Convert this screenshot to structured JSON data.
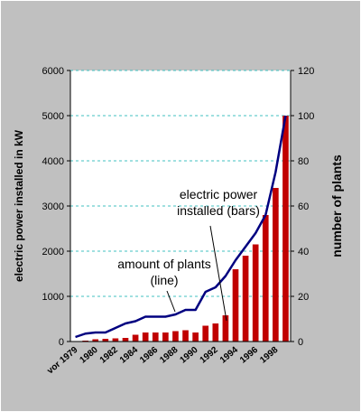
{
  "chart_data": {
    "type": "bar-line",
    "y_label": "electric power installed in kW",
    "y2_label": "number of plants",
    "categories": [
      "vor 1979",
      null,
      "1980",
      null,
      "1982",
      null,
      "1984",
      null,
      "1986",
      null,
      "1988",
      null,
      "1990",
      null,
      "1992",
      null,
      "1994",
      null,
      "1996",
      null,
      "1998",
      null
    ],
    "series": [
      {
        "type": "bar",
        "color": "#c00000",
        "values": [
          0,
          20,
          50,
          60,
          70,
          80,
          150,
          200,
          200,
          200,
          230,
          250,
          200,
          350,
          400,
          580,
          1600,
          1900,
          2150,
          2800,
          3400,
          5000
        ]
      },
      {
        "type": "line",
        "axis": "y2",
        "color": "#000080",
        "values": [
          2,
          3.5,
          4,
          4,
          6,
          8,
          9,
          11,
          11,
          11,
          12,
          14,
          14,
          22,
          24,
          29,
          36,
          42,
          48,
          56,
          75,
          100
        ]
      }
    ],
    "ylim": [
      0,
      6000
    ],
    "yticks": [
      0,
      1000,
      2000,
      3000,
      4000,
      5000,
      6000
    ],
    "y2lim": [
      0,
      120
    ],
    "y2ticks": [
      0,
      20,
      40,
      60,
      80,
      100,
      120
    ],
    "grid": true,
    "annotations": [
      {
        "lines": [
          "electric power",
          "installed (bars)"
        ]
      },
      {
        "lines": [
          "amount of plants",
          "(line)"
        ]
      }
    ]
  }
}
